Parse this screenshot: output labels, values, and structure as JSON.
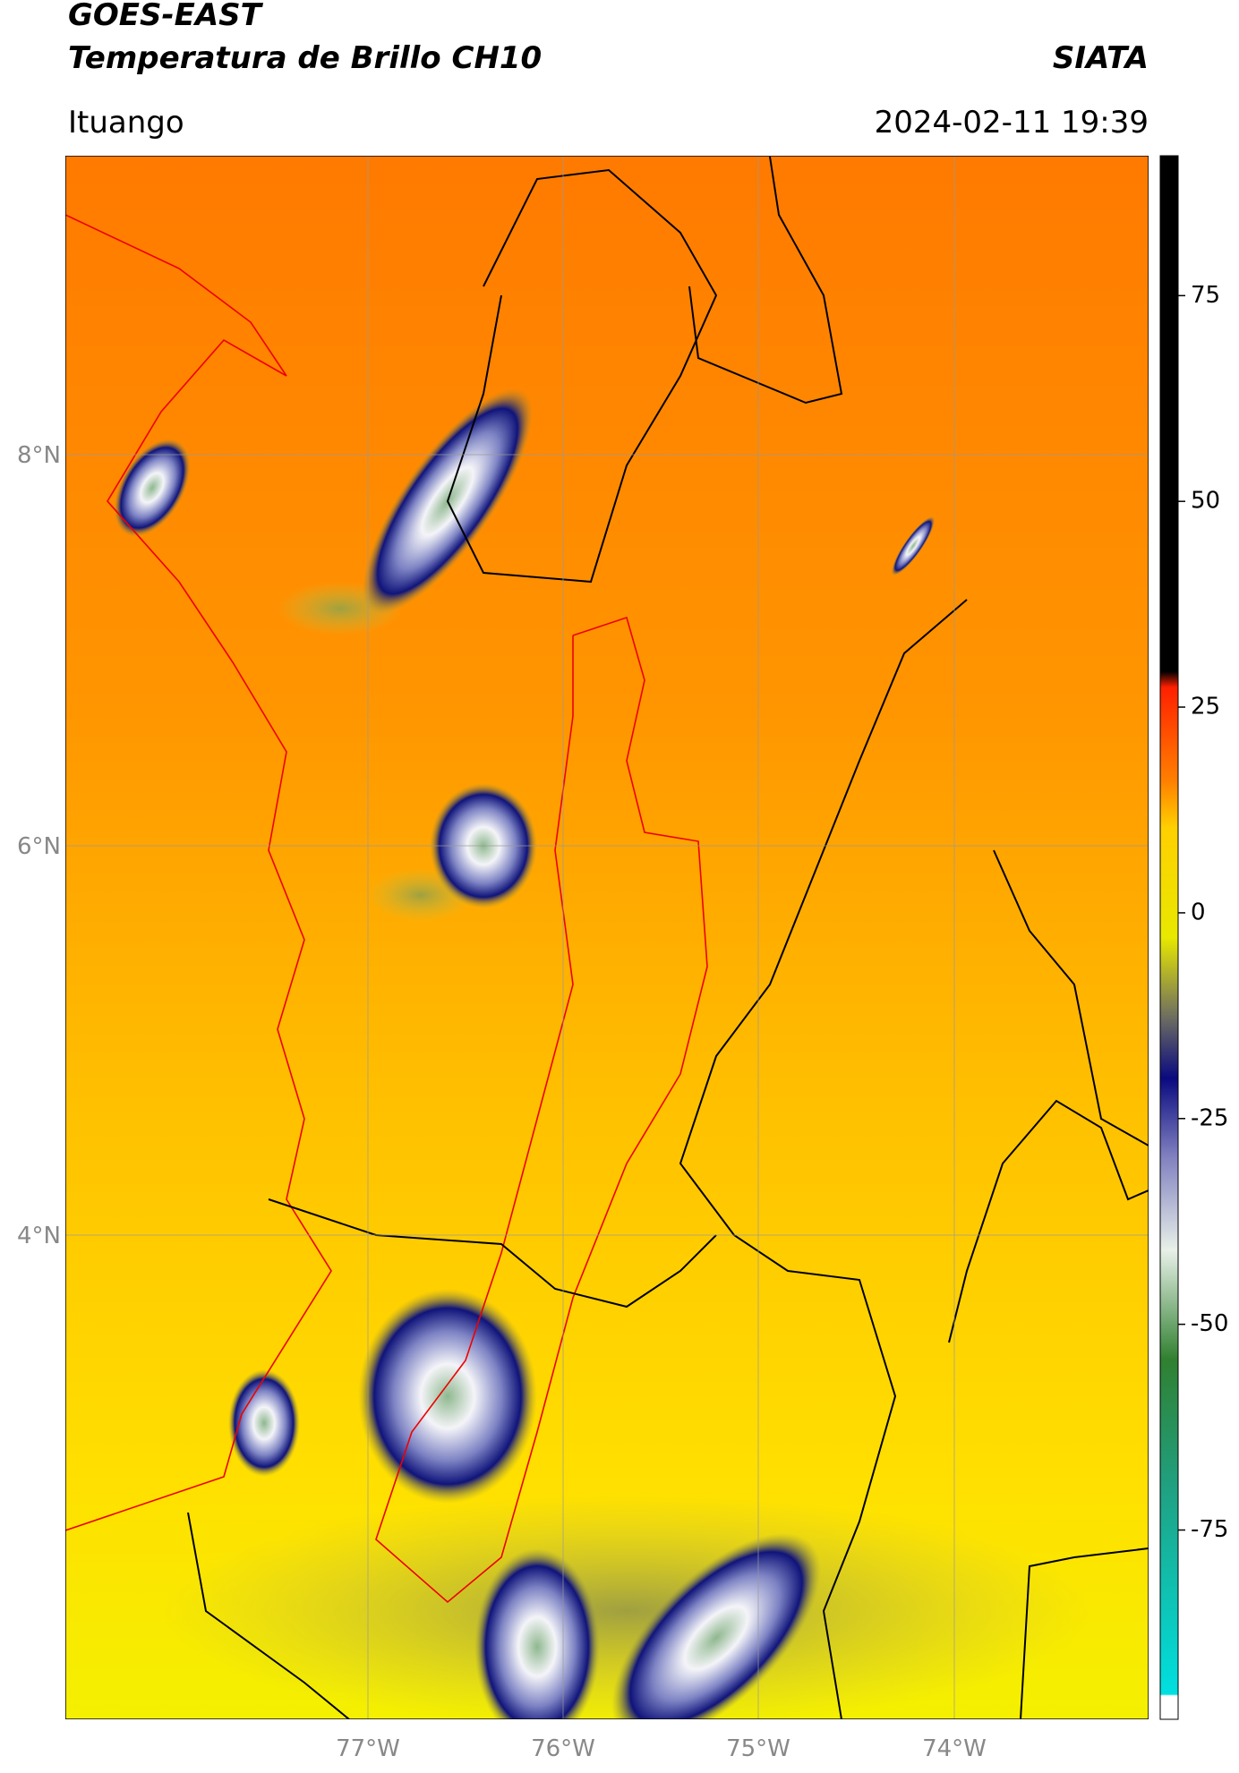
{
  "header": {
    "title_line1": "GOES-EAST",
    "title_line2": "Temperatura de Brillo CH10",
    "brand": "SIATA",
    "location": "Ituango",
    "datetime": "2024-02-11 19:39"
  },
  "map": {
    "lat_labels": [
      "8°N",
      "6°N",
      "4°N"
    ],
    "lon_labels": [
      "77°W",
      "76°W",
      "75°W",
      "74°W"
    ]
  },
  "colorbar": {
    "lim": [
      -98,
      92
    ],
    "ticks": [
      75,
      50,
      25,
      0,
      -25,
      -50,
      -75
    ]
  }
}
